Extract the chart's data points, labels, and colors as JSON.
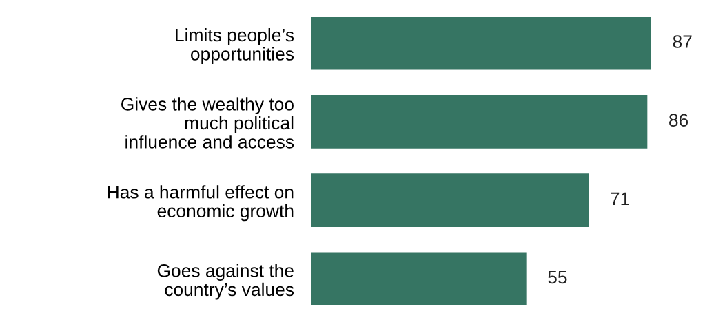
{
  "chart_data": {
    "type": "bar",
    "orientation": "horizontal",
    "data_labels": true,
    "color": "#367563",
    "categories": [
      "Limits people’s\nopportunities",
      "Gives the wealthy too\nmuch political\ninfluence and access",
      "Has a harmful effect on\neconomic growth",
      "Goes against the\ncountry’s values"
    ],
    "values": [
      87,
      86,
      71,
      55
    ]
  }
}
